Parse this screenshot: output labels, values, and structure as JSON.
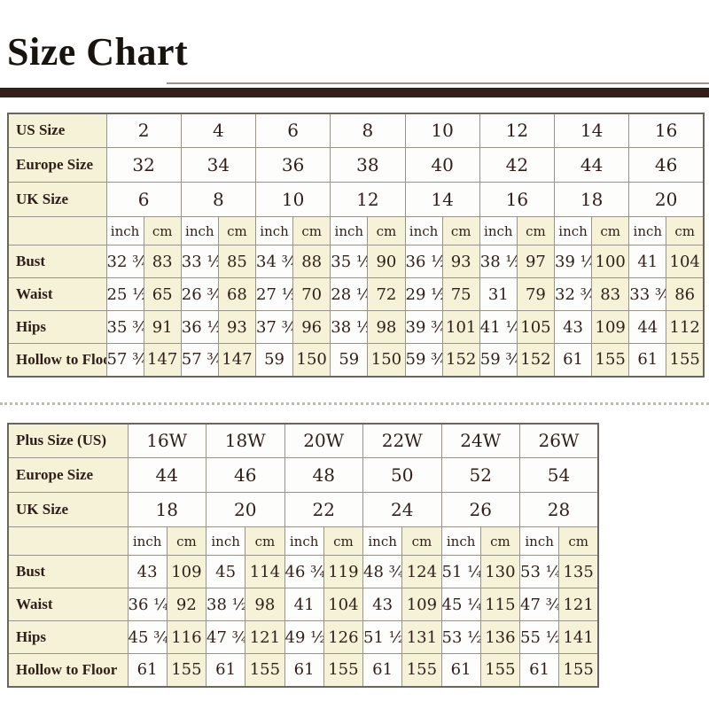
{
  "page": {
    "title": "Size Chart"
  },
  "chart_data": [
    {
      "type": "table",
      "name": "standard-sizes",
      "unit_labels": [
        "inch",
        "cm"
      ],
      "header_rows": [
        {
          "label": "US Size",
          "values": [
            "2",
            "4",
            "6",
            "8",
            "10",
            "12",
            "14",
            "16"
          ]
        },
        {
          "label": "Europe Size",
          "values": [
            "32",
            "34",
            "36",
            "38",
            "40",
            "42",
            "44",
            "46"
          ]
        },
        {
          "label": "UK Size",
          "values": [
            "6",
            "8",
            "10",
            "12",
            "14",
            "16",
            "18",
            "20"
          ]
        }
      ],
      "measurement_rows": [
        {
          "label": "Bust",
          "pairs": [
            [
              "32 ¾",
              "83"
            ],
            [
              "33 ½",
              "85"
            ],
            [
              "34 ¾",
              "88"
            ],
            [
              "35 ½",
              "90"
            ],
            [
              "36 ½",
              "93"
            ],
            [
              "38 ½",
              "97"
            ],
            [
              "39 ¼",
              "100"
            ],
            [
              "41",
              "104"
            ]
          ]
        },
        {
          "label": "Waist",
          "pairs": [
            [
              "25 ½",
              "65"
            ],
            [
              "26 ¾",
              "68"
            ],
            [
              "27 ½",
              "70"
            ],
            [
              "28 ¼",
              "72"
            ],
            [
              "29 ½",
              "75"
            ],
            [
              "31",
              "79"
            ],
            [
              "32 ¾",
              "83"
            ],
            [
              "33 ¾",
              "86"
            ]
          ]
        },
        {
          "label": "Hips",
          "pairs": [
            [
              "35 ¾",
              "91"
            ],
            [
              "36 ½",
              "93"
            ],
            [
              "37 ¾",
              "96"
            ],
            [
              "38 ½",
              "98"
            ],
            [
              "39 ¾",
              "101"
            ],
            [
              "41 ¼",
              "105"
            ],
            [
              "43",
              "109"
            ],
            [
              "44",
              "112"
            ]
          ]
        },
        {
          "label": "Hollow to Floor",
          "pairs": [
            [
              "57 ¾",
              "147"
            ],
            [
              "57 ¾",
              "147"
            ],
            [
              "59",
              "150"
            ],
            [
              "59",
              "150"
            ],
            [
              "59 ¾",
              "152"
            ],
            [
              "59 ¾",
              "152"
            ],
            [
              "61",
              "155"
            ],
            [
              "61",
              "155"
            ]
          ]
        }
      ]
    },
    {
      "type": "table",
      "name": "plus-sizes",
      "unit_labels": [
        "inch",
        "cm"
      ],
      "header_rows": [
        {
          "label": "Plus Size (US)",
          "values": [
            "16W",
            "18W",
            "20W",
            "22W",
            "24W",
            "26W"
          ]
        },
        {
          "label": "Europe Size",
          "values": [
            "44",
            "46",
            "48",
            "50",
            "52",
            "54"
          ]
        },
        {
          "label": "UK Size",
          "values": [
            "18",
            "20",
            "22",
            "24",
            "26",
            "28"
          ]
        }
      ],
      "measurement_rows": [
        {
          "label": "Bust",
          "pairs": [
            [
              "43",
              "109"
            ],
            [
              "45",
              "114"
            ],
            [
              "46 ¾",
              "119"
            ],
            [
              "48 ¾",
              "124"
            ],
            [
              "51 ¼",
              "130"
            ],
            [
              "53 ¼",
              "135"
            ]
          ]
        },
        {
          "label": "Waist",
          "pairs": [
            [
              "36 ¼",
              "92"
            ],
            [
              "38 ½",
              "98"
            ],
            [
              "41",
              "104"
            ],
            [
              "43",
              "109"
            ],
            [
              "45 ¼",
              "115"
            ],
            [
              "47 ¾",
              "121"
            ]
          ]
        },
        {
          "label": "Hips",
          "pairs": [
            [
              "45 ¾",
              "116"
            ],
            [
              "47 ¾",
              "121"
            ],
            [
              "49 ½",
              "126"
            ],
            [
              "51 ½",
              "131"
            ],
            [
              "53 ½",
              "136"
            ],
            [
              "55 ½",
              "141"
            ]
          ]
        },
        {
          "label": "Hollow to Floor",
          "pairs": [
            [
              "61",
              "155"
            ],
            [
              "61",
              "155"
            ],
            [
              "61",
              "155"
            ],
            [
              "61",
              "155"
            ],
            [
              "61",
              "155"
            ],
            [
              "61",
              "155"
            ]
          ]
        }
      ]
    }
  ]
}
